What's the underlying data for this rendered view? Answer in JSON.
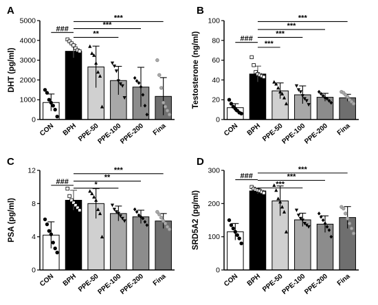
{
  "chart_data": [
    {
      "type": "bar",
      "panel": "A",
      "ylabel": "DHT (pg/ml)",
      "ylim": [
        0,
        5000
      ],
      "yticks": [
        "0",
        "1000",
        "2000",
        "3000",
        "4000",
        "5000"
      ],
      "categories": [
        "CON",
        "BPH",
        "PPE-50",
        "PPE-100",
        "PPE-200",
        "Fina"
      ],
      "values": [
        860,
        3450,
        2660,
        1970,
        1640,
        1170
      ],
      "errors": [
        430,
        330,
        1050,
        720,
        1000,
        950
      ],
      "points": [
        [
          1500,
          1350,
          1000,
          850,
          700,
          500,
          150
        ],
        [
          4050,
          3950,
          3850,
          3750,
          3600,
          3500,
          3450
        ],
        [
          3700,
          3350,
          3250,
          2850,
          2400,
          2200,
          650
        ],
        [
          2850,
          2700,
          2450,
          1950,
          1800,
          1700,
          1100
        ],
        [
          2100,
          1950,
          1850,
          1650,
          1250,
          700,
          250
        ],
        [
          3000,
          2250,
          1600,
          850,
          650,
          450,
          250
        ]
      ],
      "comparisons": [
        {
          "label": "###",
          "from": "CON",
          "to": "BPH",
          "y": 4400
        },
        {
          "label": "**",
          "from": "BPH",
          "to": "PPE-100",
          "y": 4150
        },
        {
          "label": "***",
          "from": "BPH",
          "to": "PPE-200",
          "y": 4600
        },
        {
          "label": "***",
          "from": "BPH",
          "to": "Fina",
          "y": 4950
        }
      ]
    },
    {
      "type": "bar",
      "panel": "B",
      "ylabel": "Testosterone (ng/ml)",
      "ylim": [
        0,
        100
      ],
      "yticks": [
        "0",
        "20",
        "40",
        "60",
        "80",
        "100"
      ],
      "categories": [
        "CON",
        "BPH",
        "PPE-50",
        "PPE-100",
        "PPE-200",
        "Fina"
      ],
      "values": [
        12,
        46,
        29,
        25,
        22.5,
        22
      ],
      "errors": [
        4,
        8,
        8,
        9,
        4,
        3.5
      ],
      "points": [
        [
          20,
          16,
          13,
          11,
          9,
          7,
          6
        ],
        [
          63,
          55,
          48,
          46,
          45,
          44,
          43
        ],
        [
          38,
          36,
          32,
          28,
          26,
          22,
          16
        ],
        [
          34,
          30,
          28,
          24,
          21,
          19,
          15
        ],
        [
          28,
          26,
          24,
          22,
          21,
          19,
          17
        ],
        [
          28,
          27,
          25,
          23,
          20,
          18,
          16
        ]
      ],
      "comparisons": [
        {
          "label": "###",
          "from": "CON",
          "to": "BPH",
          "y": 78
        },
        {
          "label": "***",
          "from": "BPH",
          "to": "PPE-50",
          "y": 73
        },
        {
          "label": "***",
          "from": "BPH",
          "to": "PPE-100",
          "y": 83
        },
        {
          "label": "***",
          "from": "BPH",
          "to": "PPE-200",
          "y": 91
        },
        {
          "label": "***",
          "from": "BPH",
          "to": "Fina",
          "y": 99
        }
      ]
    },
    {
      "type": "bar",
      "panel": "C",
      "ylabel": "PSA (pg/ml)",
      "ylim": [
        0,
        12
      ],
      "yticks": [
        "0",
        "4",
        "8",
        "12"
      ],
      "categories": [
        "CON",
        "BPH",
        "PPE-50",
        "PPE-100",
        "PPE-200",
        "Fina"
      ],
      "values": [
        4.2,
        8.4,
        8.0,
        6.8,
        6.4,
        5.9
      ],
      "errors": [
        1.6,
        1.2,
        1.8,
        0.9,
        0.8,
        0.9
      ],
      "points": [
        [
          6.1,
          5.5,
          4.7,
          4.3,
          3.3,
          2.6,
          2.1
        ],
        [
          9.8,
          8.9,
          8.4,
          8.1,
          7.8,
          7.5,
          7.2
        ],
        [
          9.5,
          9.2,
          8.8,
          8.4,
          7.3,
          6.8,
          4.0
        ],
        [
          7.8,
          7.3,
          7.0,
          6.8,
          6.5,
          6.2,
          5.9
        ],
        [
          7.3,
          7.0,
          6.6,
          6.4,
          6.2,
          5.8,
          5.4
        ],
        [
          7.0,
          6.7,
          6.3,
          5.9,
          5.6,
          5.2,
          4.9
        ]
      ],
      "comparisons": [
        {
          "label": "###",
          "from": "CON",
          "to": "BPH",
          "y": 10.2
        },
        {
          "label": "*",
          "from": "BPH",
          "to": "PPE-100",
          "y": 9.85
        },
        {
          "label": "**",
          "from": "BPH",
          "to": "PPE-200",
          "y": 10.7
        },
        {
          "label": "***",
          "from": "BPH",
          "to": "Fina",
          "y": 11.6
        }
      ]
    },
    {
      "type": "bar",
      "panel": "D",
      "ylabel": "SRD5A2 (pg/ml)",
      "ylim": [
        0,
        300
      ],
      "yticks": [
        "0",
        "100",
        "200",
        "300"
      ],
      "categories": [
        "CON",
        "BPH",
        "PPE-50",
        "PPE-100",
        "PPE-200",
        "Fina"
      ],
      "values": [
        115,
        238,
        208,
        151,
        138,
        158
      ],
      "errors": [
        25,
        8,
        45,
        20,
        25,
        33
      ],
      "points": [
        [
          150,
          135,
          125,
          115,
          105,
          95,
          80
        ],
        [
          250,
          245,
          242,
          240,
          238,
          235,
          232
        ],
        [
          255,
          240,
          215,
          205,
          190,
          175,
          115
        ],
        [
          180,
          165,
          155,
          150,
          140,
          135,
          130
        ],
        [
          170,
          160,
          150,
          140,
          130,
          120,
          100
        ],
        [
          190,
          185,
          170,
          155,
          140,
          125,
          110
        ]
      ],
      "comparisons": [
        {
          "label": "###",
          "from": "CON",
          "to": "BPH",
          "y": 272
        },
        {
          "label": "***",
          "from": "BPH",
          "to": "PPE-100",
          "y": 247
        },
        {
          "label": "***",
          "from": "BPH",
          "to": "PPE-200",
          "y": 270
        },
        {
          "label": "***",
          "from": "BPH",
          "to": "Fina",
          "y": 292
        }
      ]
    }
  ],
  "bar_colors": [
    "#ffffff",
    "#000000",
    "#d0d0d0",
    "#a8a8a8",
    "#8c8c8c",
    "#6f6f6f"
  ],
  "marker_fills": [
    "#000000",
    "#ffffff",
    "#000000",
    "#000000",
    "#000000",
    "#aaaaaa"
  ],
  "marker_shapes": [
    "circle",
    "square",
    "triangle-up",
    "triangle-down",
    "diamond",
    "circle"
  ]
}
